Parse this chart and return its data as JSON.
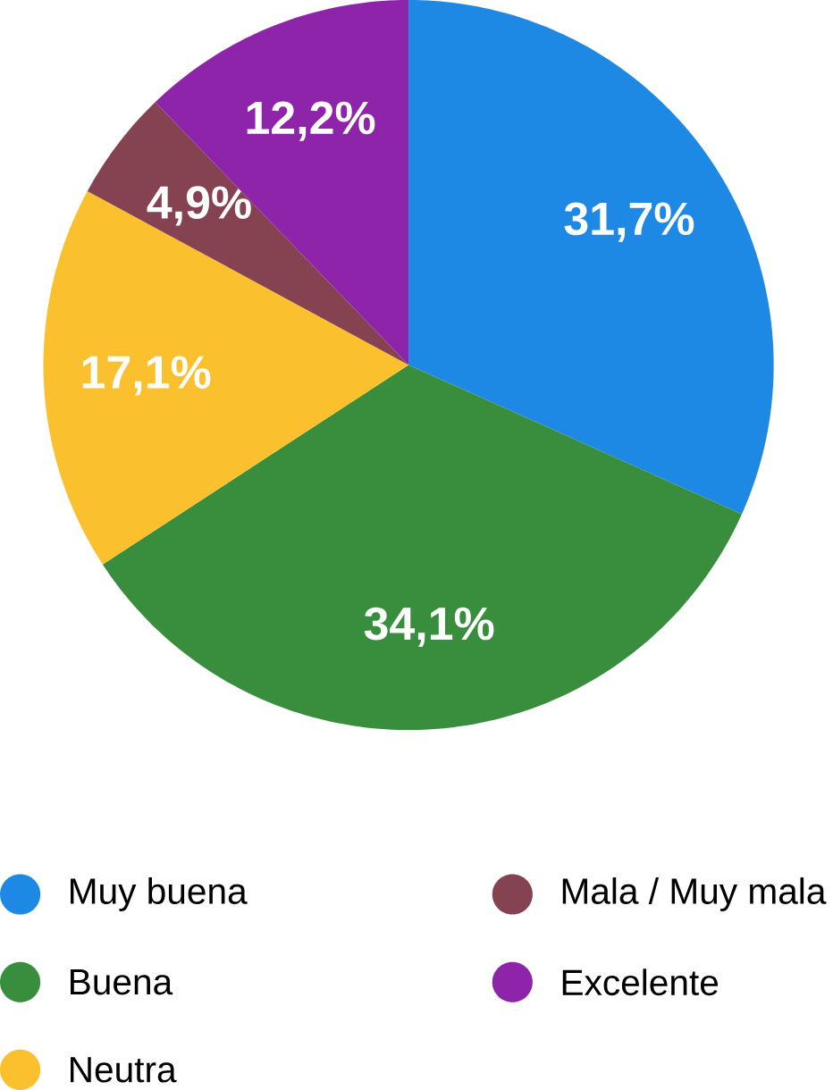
{
  "chart_data": {
    "type": "pie",
    "categories": [
      "Muy buena",
      "Buena",
      "Neutra",
      "Mala / Muy mala",
      "Excelente"
    ],
    "values": [
      31.7,
      34.1,
      17.1,
      4.9,
      12.2
    ],
    "value_labels": [
      "31,7%",
      "34,1%",
      "17,1%",
      "4,9%",
      "12,2%"
    ],
    "colors": [
      "#1e88e5",
      "#388e3c",
      "#fbc02d",
      "#854352",
      "#8e24aa"
    ],
    "legend": "bottom"
  }
}
